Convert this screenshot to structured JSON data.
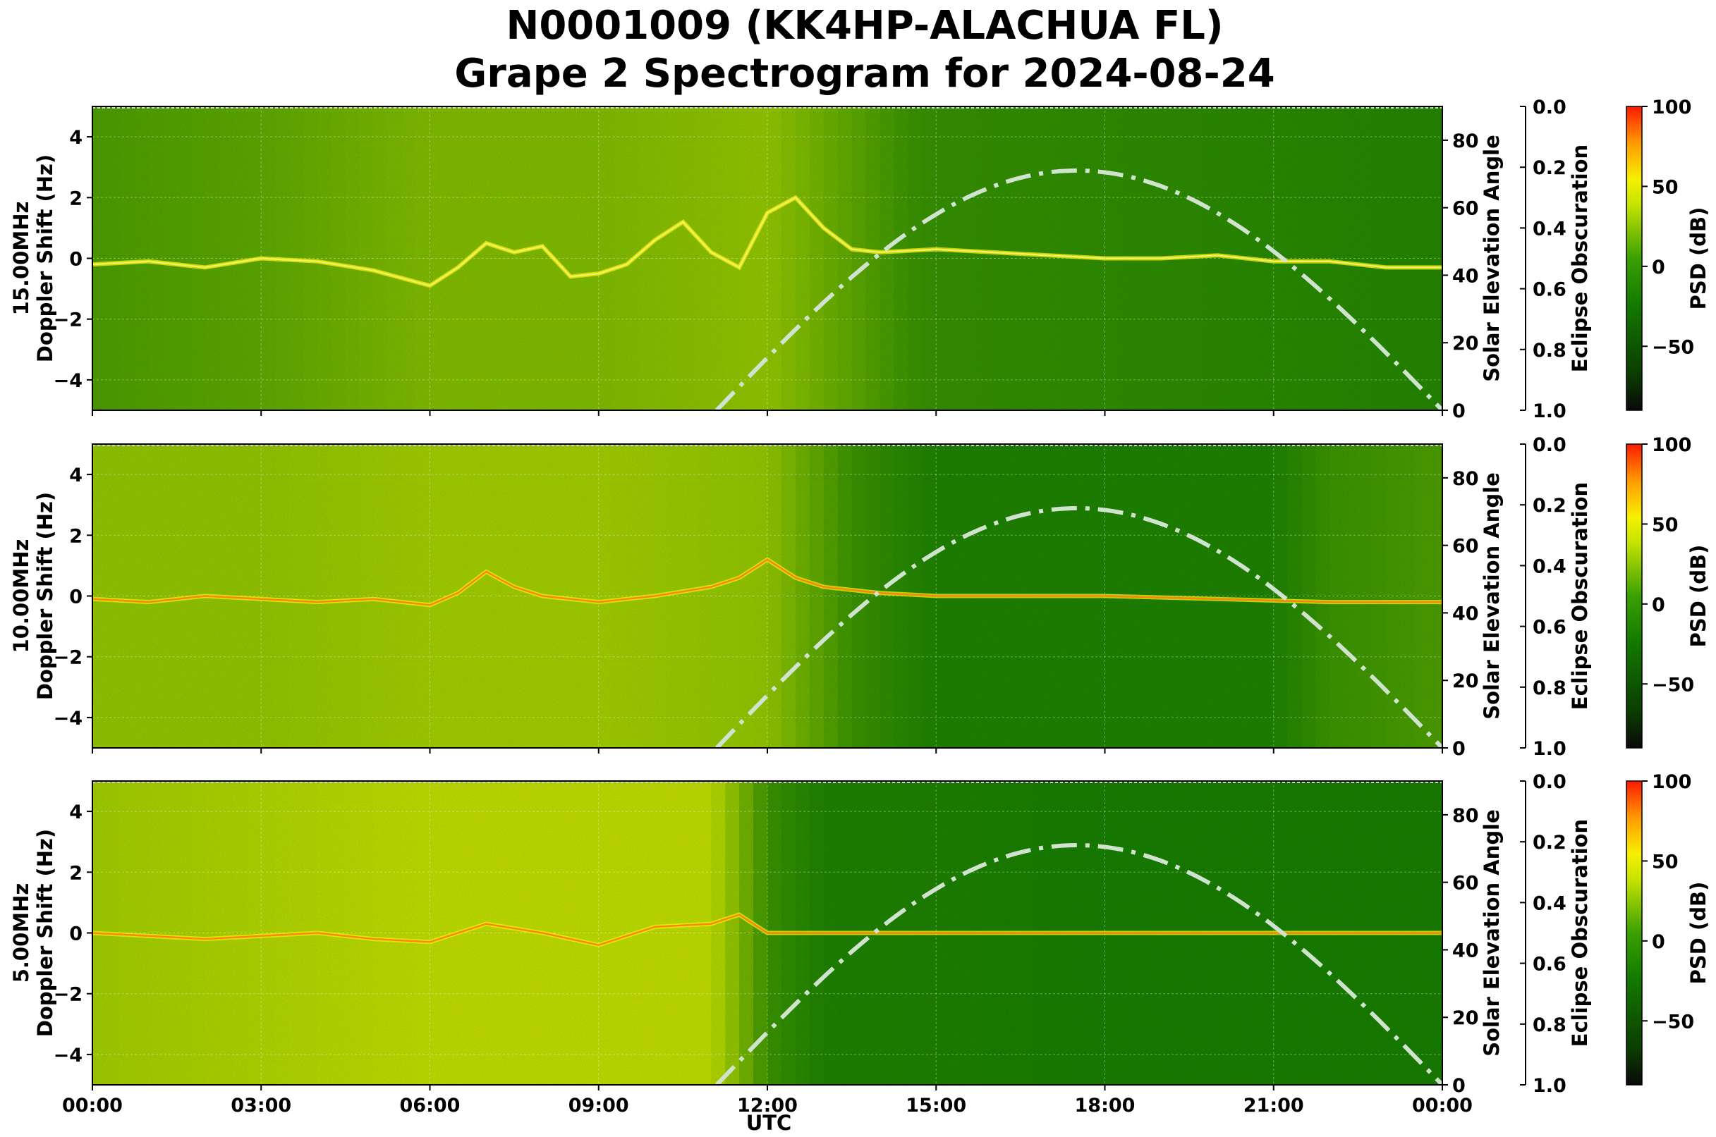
{
  "title_line1": "N0001009 (KK4HP-ALACHUA FL)",
  "title_line2": "Grape 2 Spectrogram for 2024-08-24",
  "colors": {
    "spectrogram_low": "#1f8a00",
    "spectrogram_mid": "#d7e800",
    "spectrogram_high": "#ff3c00",
    "elevation_curve": "#cfe3cf"
  },
  "chart_data": [
    {
      "type": "heatmap",
      "frequency_label": "15.00MHz",
      "ylabel": "Doppler Shift (Hz)",
      "ylim": [
        -5,
        5
      ],
      "yticks": [
        "4",
        "2",
        "0",
        "−2",
        "−4"
      ],
      "right_ylabel": "Solar Elevation Angle",
      "right_ylim": [
        0,
        90
      ],
      "right_yticks": [
        "80",
        "60",
        "40",
        "20",
        "0"
      ],
      "eclipse_label": "Eclipse Obscuration",
      "eclipse_ylim": [
        0.0,
        1.0
      ],
      "eclipse_ticks": [
        "0.0",
        "0.2",
        "0.4",
        "0.6",
        "0.8",
        "1.0"
      ],
      "colorbar_label": "PSD (dB)",
      "colorbar_range": [
        -90,
        100
      ],
      "colorbar_ticks": [
        "100",
        "50",
        "0",
        "−50"
      ],
      "doppler_trace": [
        [
          0,
          -0.2
        ],
        [
          1,
          -0.1
        ],
        [
          2,
          -0.3
        ],
        [
          3,
          0.0
        ],
        [
          4,
          -0.1
        ],
        [
          5,
          -0.4
        ],
        [
          6,
          -0.9
        ],
        [
          6.5,
          -0.3
        ],
        [
          7,
          0.5
        ],
        [
          7.5,
          0.2
        ],
        [
          8,
          0.4
        ],
        [
          8.5,
          -0.6
        ],
        [
          9,
          -0.5
        ],
        [
          9.5,
          -0.2
        ],
        [
          10,
          0.6
        ],
        [
          10.5,
          1.2
        ],
        [
          11,
          0.2
        ],
        [
          11.5,
          -0.3
        ],
        [
          12,
          1.5
        ],
        [
          12.5,
          2.0
        ],
        [
          13,
          1.0
        ],
        [
          13.5,
          0.3
        ],
        [
          14,
          0.2
        ],
        [
          15,
          0.3
        ],
        [
          16,
          0.2
        ],
        [
          17,
          0.1
        ],
        [
          18,
          0.0
        ],
        [
          19,
          0.0
        ],
        [
          20,
          0.1
        ],
        [
          21,
          -0.1
        ],
        [
          22,
          -0.1
        ],
        [
          23,
          -0.3
        ],
        [
          24,
          -0.3
        ]
      ],
      "intensity_profile": [
        [
          0,
          0.35
        ],
        [
          3,
          0.4
        ],
        [
          6,
          0.5
        ],
        [
          9,
          0.5
        ],
        [
          12,
          0.55
        ],
        [
          15,
          0.25
        ],
        [
          18,
          0.2
        ],
        [
          21,
          0.15
        ],
        [
          24,
          0.1
        ]
      ]
    },
    {
      "type": "heatmap",
      "frequency_label": "10.00MHz",
      "ylabel": "Doppler Shift (Hz)",
      "ylim": [
        -5,
        5
      ],
      "yticks": [
        "4",
        "2",
        "0",
        "−2",
        "−4"
      ],
      "right_ylabel": "Solar Elevation Angle",
      "right_ylim": [
        0,
        90
      ],
      "right_yticks": [
        "80",
        "60",
        "40",
        "20",
        "0"
      ],
      "eclipse_label": "Eclipse Obscuration",
      "eclipse_ylim": [
        0.0,
        1.0
      ],
      "eclipse_ticks": [
        "0.0",
        "0.2",
        "0.4",
        "0.6",
        "0.8",
        "1.0"
      ],
      "colorbar_label": "PSD (dB)",
      "colorbar_range": [
        -90,
        100
      ],
      "colorbar_ticks": [
        "100",
        "50",
        "0",
        "−50"
      ],
      "doppler_trace": [
        [
          0,
          -0.1
        ],
        [
          1,
          -0.2
        ],
        [
          2,
          0.0
        ],
        [
          3,
          -0.1
        ],
        [
          4,
          -0.2
        ],
        [
          5,
          -0.1
        ],
        [
          6,
          -0.3
        ],
        [
          6.5,
          0.1
        ],
        [
          7,
          0.8
        ],
        [
          7.5,
          0.3
        ],
        [
          8,
          0.0
        ],
        [
          9,
          -0.2
        ],
        [
          10,
          0.0
        ],
        [
          11,
          0.3
        ],
        [
          11.5,
          0.6
        ],
        [
          12,
          1.2
        ],
        [
          12.5,
          0.6
        ],
        [
          13,
          0.3
        ],
        [
          14,
          0.1
        ],
        [
          15,
          0.0
        ],
        [
          16,
          0.0
        ],
        [
          18,
          0.0
        ],
        [
          20,
          -0.1
        ],
        [
          22,
          -0.2
        ],
        [
          24,
          -0.2
        ]
      ],
      "intensity_profile": [
        [
          0,
          0.55
        ],
        [
          3,
          0.55
        ],
        [
          6,
          0.6
        ],
        [
          9,
          0.6
        ],
        [
          12,
          0.55
        ],
        [
          13.5,
          0.3
        ],
        [
          15,
          0.05
        ],
        [
          18,
          0.05
        ],
        [
          21,
          0.05
        ],
        [
          22,
          0.3
        ],
        [
          24,
          0.35
        ]
      ]
    },
    {
      "type": "heatmap",
      "frequency_label": "5.00MHz",
      "ylabel": "Doppler Shift (Hz)",
      "ylim": [
        -5,
        5
      ],
      "yticks": [
        "4",
        "2",
        "0",
        "−2",
        "−4"
      ],
      "right_ylabel": "Solar Elevation Angle",
      "right_ylim": [
        0,
        90
      ],
      "right_yticks": [
        "80",
        "60",
        "40",
        "20",
        "0"
      ],
      "eclipse_label": "Eclipse Obscuration",
      "eclipse_ylim": [
        0.0,
        1.0
      ],
      "eclipse_ticks": [
        "0.0",
        "0.2",
        "0.4",
        "0.6",
        "0.8",
        "1.0"
      ],
      "colorbar_label": "PSD (dB)",
      "colorbar_range": [
        -90,
        100
      ],
      "colorbar_ticks": [
        "100",
        "50",
        "0",
        "−50"
      ],
      "doppler_trace": [
        [
          0,
          0.0
        ],
        [
          1,
          -0.1
        ],
        [
          2,
          -0.2
        ],
        [
          3,
          -0.1
        ],
        [
          4,
          0.0
        ],
        [
          5,
          -0.2
        ],
        [
          6,
          -0.3
        ],
        [
          7,
          0.3
        ],
        [
          8,
          0.0
        ],
        [
          9,
          -0.4
        ],
        [
          10,
          0.2
        ],
        [
          11,
          0.3
        ],
        [
          11.5,
          0.6
        ],
        [
          12,
          0.0
        ],
        [
          14,
          0.0
        ],
        [
          16,
          0.0
        ],
        [
          18,
          0.0
        ],
        [
          20,
          0.0
        ],
        [
          22,
          0.0
        ],
        [
          24,
          0.0
        ]
      ],
      "intensity_profile": [
        [
          0,
          0.6
        ],
        [
          3,
          0.65
        ],
        [
          6,
          0.7
        ],
        [
          9,
          0.7
        ],
        [
          11,
          0.7
        ],
        [
          12,
          0.3
        ],
        [
          13,
          0.05
        ],
        [
          18,
          0.0
        ],
        [
          24,
          0.0
        ]
      ]
    }
  ],
  "solar_elevation": {
    "peak_time": 17.5,
    "peak_angle": 71,
    "sunrise": 11.1,
    "sunset": 24
  },
  "xaxis": {
    "label": "UTC",
    "xlim": [
      0,
      24
    ],
    "ticks": [
      "00:00",
      "03:00",
      "06:00",
      "09:00",
      "12:00",
      "15:00",
      "18:00",
      "21:00",
      "00:00"
    ]
  }
}
